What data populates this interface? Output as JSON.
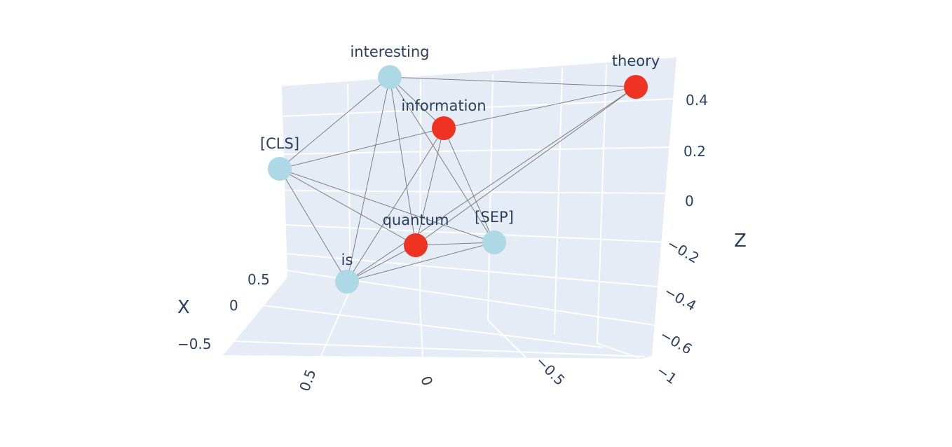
{
  "chart_data": {
    "type": "scatter3d",
    "title": "",
    "axes": {
      "x": {
        "title": "X",
        "ticks": [
          "0.5",
          "0",
          "−0.5"
        ]
      },
      "y": {
        "title": "",
        "ticks": [
          "0.5",
          "0",
          "−0.5",
          "−1"
        ]
      },
      "z": {
        "title": "Z",
        "ticks": [
          "0.4",
          "0.2",
          "0",
          "−0.2",
          "−0.4",
          "−0.6"
        ]
      }
    },
    "colors": {
      "highlight": "#ee3322",
      "normal": "#add8e6",
      "edge": "#7f7f7f",
      "pane": "#e5ecf6"
    },
    "nodes": [
      {
        "label": "[CLS]",
        "highlight": false
      },
      {
        "label": "interesting",
        "highlight": false
      },
      {
        "label": "theory",
        "highlight": true
      },
      {
        "label": "information",
        "highlight": true
      },
      {
        "label": "quantum",
        "highlight": true
      },
      {
        "label": "[SEP]",
        "highlight": false
      },
      {
        "label": "is",
        "highlight": false
      }
    ],
    "edges": [
      [
        "interesting",
        "theory"
      ],
      [
        "interesting",
        "[CLS]"
      ],
      [
        "interesting",
        "information"
      ],
      [
        "interesting",
        "is"
      ],
      [
        "interesting",
        "quantum"
      ],
      [
        "interesting",
        "[SEP]"
      ],
      [
        "[CLS]",
        "information"
      ],
      [
        "[CLS]",
        "is"
      ],
      [
        "[CLS]",
        "quantum"
      ],
      [
        "[CLS]",
        "[SEP]"
      ],
      [
        "information",
        "theory"
      ],
      [
        "information",
        "quantum"
      ],
      [
        "information",
        "[SEP]"
      ],
      [
        "information",
        "is"
      ],
      [
        "theory",
        "quantum"
      ],
      [
        "theory",
        "is"
      ],
      [
        "quantum",
        "[SEP]"
      ],
      [
        "quantum",
        "is"
      ],
      [
        "is",
        "[SEP]"
      ]
    ]
  }
}
